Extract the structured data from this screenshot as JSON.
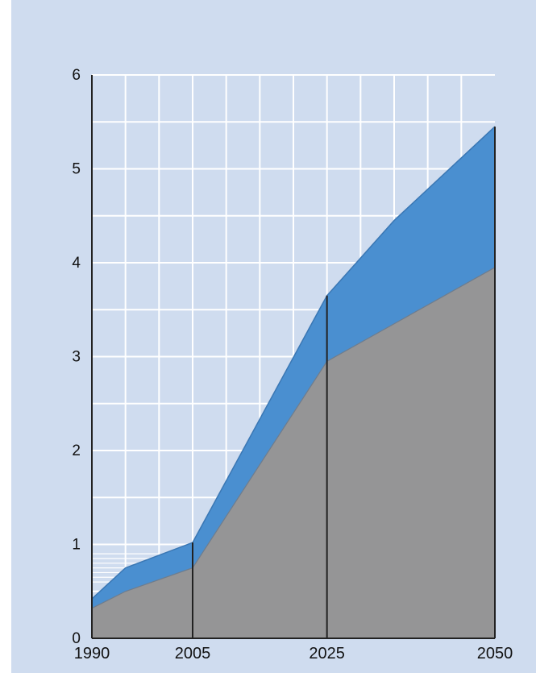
{
  "colors": {
    "background": "#cfdcef",
    "grid": "#ffffff",
    "upper_area": "#4a8fd0",
    "lower_area": "#959596",
    "axis": "#222222"
  },
  "chart_data": {
    "type": "area",
    "title": "",
    "xlabel": "",
    "ylabel": "",
    "x": [
      1990,
      1995,
      2005,
      2025,
      2035,
      2050
    ],
    "xticks": [
      1990,
      2005,
      2025,
      2050
    ],
    "yticks": [
      0,
      1,
      2,
      3,
      4,
      5,
      6
    ],
    "xlim": [
      1990,
      2050
    ],
    "ylim": [
      0,
      6
    ],
    "grid": true,
    "stacked": true,
    "series": [
      {
        "values": [
          0.32,
          0.5,
          0.75,
          2.95,
          3.35,
          3.95
        ]
      },
      {
        "values": [
          0.1,
          0.25,
          0.27,
          0.7,
          1.1,
          1.5
        ]
      }
    ],
    "marker_years": [
      2005,
      2025,
      2050
    ]
  }
}
